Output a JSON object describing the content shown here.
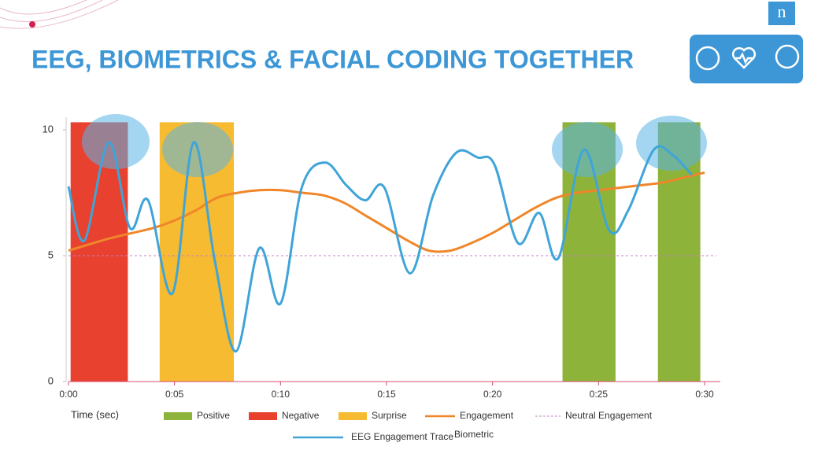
{
  "brand": "n",
  "chart_data": {
    "type": "combo",
    "title": "EEG, BIOMETRICS & FACIAL CODING TOGETHER",
    "xlabel": "Time (sec)",
    "xlim": [
      0,
      30
    ],
    "xticks": [
      {
        "value": 0,
        "label": "0:00"
      },
      {
        "value": 5,
        "label": "0:05"
      },
      {
        "value": 10,
        "label": "0:10"
      },
      {
        "value": 15,
        "label": "0:15"
      },
      {
        "value": 20,
        "label": "0:20"
      },
      {
        "value": 25,
        "label": "0:25"
      },
      {
        "value": 30,
        "label": "0:30"
      }
    ],
    "ylim": [
      0,
      10.5
    ],
    "yticks": [
      0,
      5,
      10
    ],
    "series": [
      {
        "name": "Positive",
        "kind": "band",
        "color": "#8db33a",
        "spans": [
          {
            "start": 23.3,
            "end": 25.8,
            "value": 10.3
          },
          {
            "start": 27.8,
            "end": 29.8,
            "value": 10.3
          }
        ]
      },
      {
        "name": "Negative",
        "kind": "band",
        "color": "#e8412f",
        "spans": [
          {
            "start": 0.1,
            "end": 2.8,
            "value": 10.3
          }
        ]
      },
      {
        "name": "Surprise",
        "kind": "band",
        "color": "#f6bb31",
        "spans": [
          {
            "start": 4.3,
            "end": 7.8,
            "value": 10.3
          }
        ]
      },
      {
        "name": "Engagement",
        "kind": "line",
        "color": "#f0862a",
        "x": [
          0,
          2,
          4,
          5,
          6,
          7,
          8,
          9,
          10,
          11,
          12,
          13,
          14,
          15,
          16,
          17,
          18,
          19,
          20,
          21,
          22,
          23,
          24,
          25,
          26,
          27,
          28,
          29,
          30
        ],
        "values": [
          5.2,
          5.7,
          6.1,
          6.4,
          6.8,
          7.3,
          7.5,
          7.6,
          7.6,
          7.5,
          7.4,
          7.1,
          6.6,
          6.1,
          5.6,
          5.2,
          5.2,
          5.5,
          5.9,
          6.4,
          6.9,
          7.3,
          7.5,
          7.6,
          7.7,
          7.8,
          7.9,
          8.1,
          8.3
        ]
      },
      {
        "name": "Neutral Engagement",
        "kind": "reference",
        "color": "#c77fc7",
        "value": 5
      },
      {
        "name": "EEG Engagement Trace",
        "kind": "line",
        "color": "#3fa4d8",
        "x": [
          0,
          0.75,
          1.9,
          2.9,
          3.75,
          4.9,
          5.9,
          6.9,
          7.9,
          9,
          10,
          11,
          12.1,
          13.1,
          14,
          14.9,
          16.1,
          17.2,
          18.3,
          19.3,
          20.1,
          21.2,
          22.2,
          23.1,
          24.3,
          25.5,
          26.4,
          27.6,
          28.5,
          29.4
        ],
        "values": [
          7.75,
          5.6,
          9.5,
          6.1,
          7.2,
          3.5,
          9.5,
          4.8,
          1.2,
          5.3,
          3.1,
          7.7,
          8.7,
          7.8,
          7.2,
          7.7,
          4.3,
          7.4,
          9.1,
          8.9,
          8.6,
          5.5,
          6.7,
          4.9,
          9.2,
          6.0,
          6.8,
          9.2,
          9.0,
          8.2
        ]
      }
    ],
    "legend_note": "Biometric"
  }
}
